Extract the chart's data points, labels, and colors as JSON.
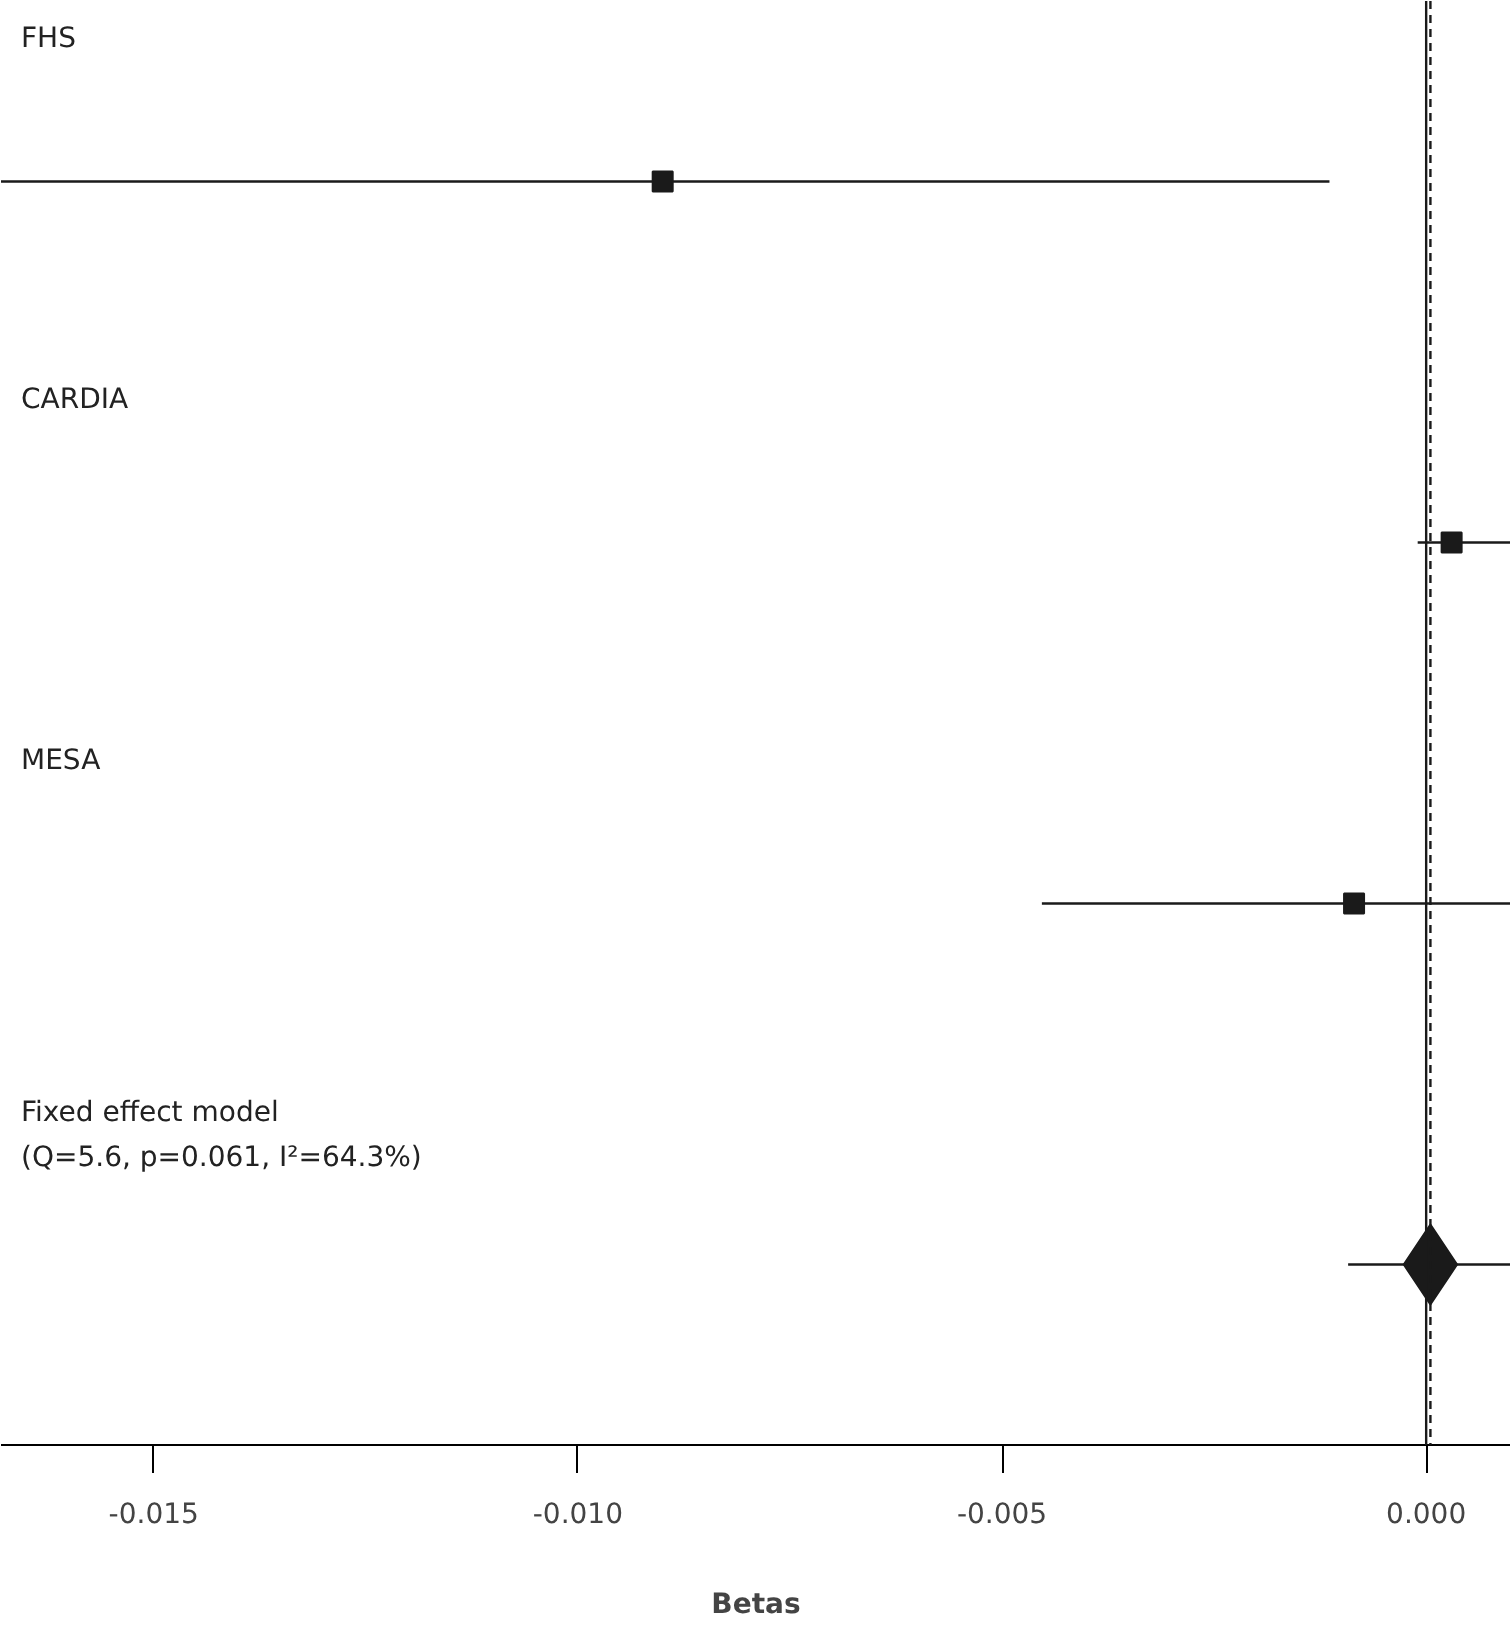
{
  "chart_data": {
    "type": "scatter",
    "orientation": "horizontal",
    "xlabel": "Betas",
    "categories": [
      "FHS",
      "CARDIA",
      "MESA",
      "Fixed effect model\n(Q=5.6, p=0.061, I²=64.3%)"
    ],
    "series": [
      {
        "marker": "square",
        "color": "#1a1a1a",
        "values": [
          -0.009,
          0.0003,
          -0.00085,
          null
        ],
        "errors": [
          [
            -0.0168,
            -0.00114
          ],
          [
            -0.0001,
            0.001
          ],
          [
            -0.00453,
            0.001
          ],
          null
        ]
      },
      {
        "marker": "diamond",
        "color": "#1a1a1a",
        "values": [
          null,
          null,
          null,
          5e-05
        ],
        "errors": [
          null,
          null,
          null,
          [
            -0.00092,
            0.001
          ]
        ]
      }
    ],
    "xlim": [
      -0.0168,
      0.001
    ],
    "xticks": [
      {
        "value": -0.015,
        "label": "-0.015"
      },
      {
        "value": -0.01,
        "label": "-0.010"
      },
      {
        "value": -0.005,
        "label": "-0.005"
      },
      {
        "value": 0,
        "label": "0.000"
      }
    ],
    "ref_lines": [
      {
        "axis": "x",
        "value": 0,
        "color": "#1a1a1a",
        "line_style": "solid"
      },
      {
        "axis": "x",
        "value": 5e-05,
        "color": "#1a1a1a",
        "line_style": "dashed"
      }
    ],
    "tick_labels": "x",
    "grid": false
  }
}
